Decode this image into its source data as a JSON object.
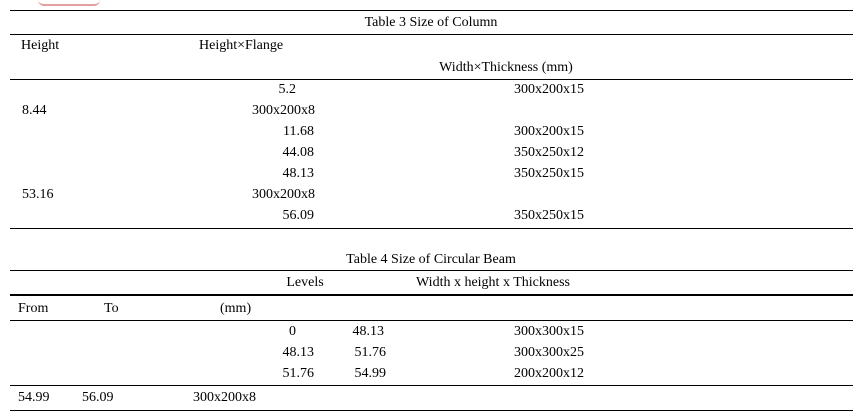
{
  "table3": {
    "caption": "Table 3 Size of Column",
    "headers": {
      "height": "Height",
      "height_flange": "Height×Flange",
      "width_thickness": "Width×Thickness (mm)"
    },
    "rows": [
      {
        "left": "",
        "mid": "5.2",
        "right": "300x200x15"
      },
      {
        "left": "8.44",
        "mid": "300x200x8",
        "right": ""
      },
      {
        "left": "",
        "mid": "11.68",
        "right": "300x200x15"
      },
      {
        "left": "",
        "mid": "44.08",
        "right": "350x250x12"
      },
      {
        "left": "",
        "mid": "48.13",
        "right": "350x250x15"
      },
      {
        "left": "53.16",
        "mid": "300x200x8",
        "right": ""
      },
      {
        "left": "",
        "mid": "56.09",
        "right": "350x250x15"
      }
    ]
  },
  "table4": {
    "caption": "Table 4 Size of Circular Beam",
    "headers": {
      "levels": "Levels",
      "width_height_thickness": "Width x height x Thickness",
      "from": "From",
      "to": "To",
      "mm": "(mm)"
    },
    "rows": [
      {
        "from": "0",
        "to": "48.13",
        "size": "300x300x15"
      },
      {
        "from": "48.13",
        "to": "51.76",
        "size": "300x300x25"
      },
      {
        "from": "51.76",
        "to": "54.99",
        "size": "200x200x12"
      }
    ],
    "last_row": {
      "from": "54.99",
      "to": "56.09",
      "size": "300x200x8"
    }
  }
}
